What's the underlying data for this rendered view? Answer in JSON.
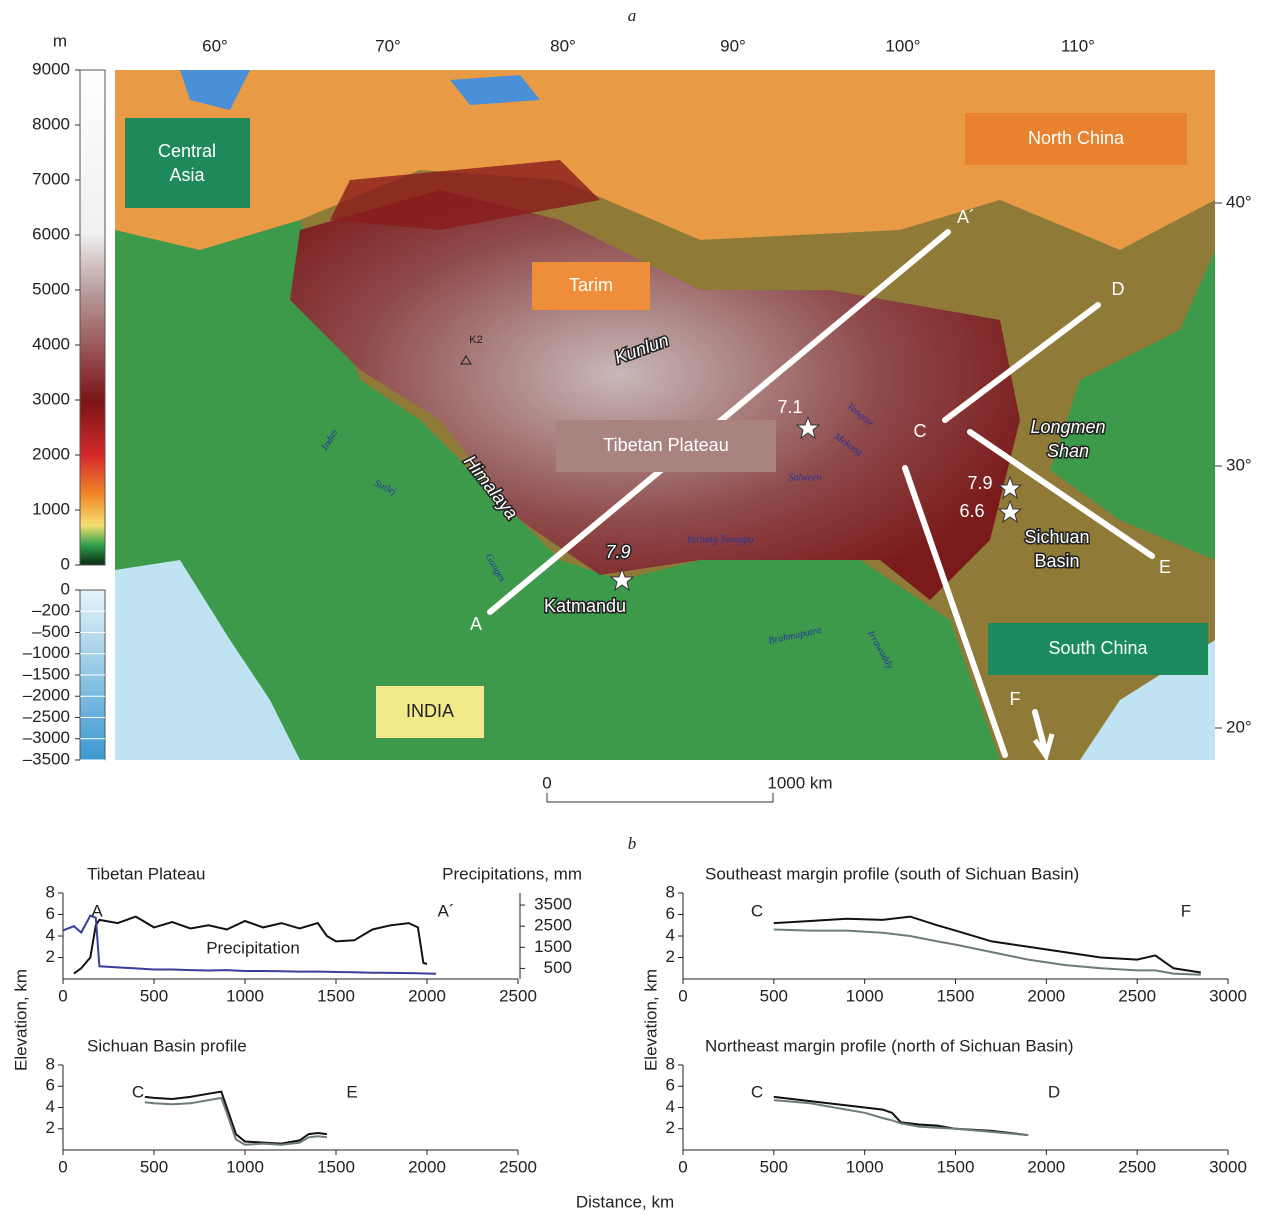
{
  "panel_a": {
    "label": "a",
    "colorbar": {
      "unit": "m",
      "land_ticks": [
        9000,
        8000,
        7000,
        6000,
        5000,
        4000,
        3000,
        2000,
        1000,
        0
      ],
      "sea_ticks": [
        0,
        {
          "value": -200,
          "label": "–200"
        },
        {
          "value": -500,
          "label": "–500"
        },
        {
          "value": -1000,
          "label": "–1000"
        },
        {
          "value": -1500,
          "label": "–1500"
        },
        {
          "value": -2000,
          "label": "–2000"
        },
        {
          "value": -2500,
          "label": "–2500"
        },
        {
          "value": -3000,
          "label": "–3000"
        },
        {
          "value": -3500,
          "label": "–3500"
        }
      ]
    },
    "longitudes": [
      "60°",
      "70°",
      "80°",
      "90°",
      "100°",
      "110°"
    ],
    "latitudes": [
      "40°",
      "30°",
      "20°"
    ],
    "regions": [
      "Central Asia",
      "North China",
      "Tarim",
      "Tibetan Plateau",
      "South China",
      "INDIA"
    ],
    "ranges": [
      "Kunlun",
      "Himalaya",
      "Longmen Shan",
      "Sichuan Basin",
      "Katmandu",
      "K2"
    ],
    "rivers": [
      "Indus",
      "Sutlej",
      "Ganges",
      "Yarlung Tsangpo",
      "Brahmaputra",
      "Irrawaddy",
      "Salween",
      "Mekong",
      "Yangtze"
    ],
    "profile_ends": [
      "A",
      "A´",
      "C",
      "D",
      "E",
      "F"
    ],
    "earthquakes": [
      "7.9",
      "7.1",
      "7.9",
      "6.6"
    ],
    "scale_bar": [
      "0",
      "1000 km"
    ]
  },
  "panel_b": {
    "label": "b",
    "y_label_left": "Elevation, km",
    "y_label_right": "Elevation, km",
    "x_label": "Distance, km"
  },
  "chart_data": [
    {
      "type": "line",
      "title": "Tibetan Plateau",
      "y2_label": "Precipitations, mm",
      "x": [
        0,
        60,
        100,
        150,
        180,
        200,
        300,
        400,
        500,
        600,
        700,
        800,
        900,
        1000,
        1100,
        1200,
        1300,
        1400,
        1450,
        1500,
        1600,
        1700,
        1800,
        1900,
        1950,
        1980,
        2000,
        2050
      ],
      "series": [
        {
          "color": "#111111",
          "values": [
            null,
            0.5,
            1,
            2,
            5,
            5.5,
            5.2,
            5.8,
            4.8,
            5.3,
            4.7,
            5,
            4.6,
            5.4,
            4.8,
            5.2,
            4.7,
            5.2,
            4,
            3.5,
            3.6,
            4.6,
            5,
            5.2,
            4.8,
            1.5,
            1.4,
            null
          ]
        },
        {
          "color": "#3a3f9a",
          "axis": "y2",
          "values": [
            2300,
            2500,
            2200,
            3000,
            2900,
            600,
            550,
            500,
            450,
            450,
            420,
            400,
            420,
            380,
            380,
            370,
            350,
            350,
            340,
            330,
            320,
            300,
            290,
            280,
            270,
            260,
            260,
            250
          ]
        }
      ],
      "annotations": [
        "A",
        "A´",
        "Precipitation"
      ],
      "xlim": [
        0,
        2500
      ],
      "xticks": [
        0,
        500,
        1000,
        1500,
        2000,
        2500
      ],
      "ylim": [
        0,
        8
      ],
      "yticks": [
        2,
        4,
        6,
        8
      ],
      "y2lim": [
        0,
        4070
      ],
      "y2ticks": [
        500,
        1500,
        2500,
        3500
      ]
    },
    {
      "type": "line",
      "title": "Southeast margin profile (south of Sichuan Basin)",
      "x": [
        500,
        700,
        900,
        1100,
        1250,
        1400,
        1500,
        1700,
        1900,
        2100,
        2300,
        2500,
        2600,
        2700,
        2850
      ],
      "series": [
        {
          "color": "#111111",
          "values": [
            5.2,
            5.4,
            5.6,
            5.5,
            5.8,
            5,
            4.5,
            3.5,
            3,
            2.5,
            2,
            1.8,
            2.2,
            1,
            0.6
          ]
        },
        {
          "color": "#6e7b7b",
          "values": [
            4.6,
            4.5,
            4.5,
            4.3,
            4,
            3.5,
            3.2,
            2.5,
            1.8,
            1.3,
            1,
            0.8,
            0.8,
            0.5,
            0.4
          ]
        }
      ],
      "annotations": [
        "C",
        "F"
      ],
      "xlim": [
        0,
        3000
      ],
      "xticks": [
        0,
        500,
        1000,
        1500,
        2000,
        2500,
        3000
      ],
      "ylim": [
        0,
        8
      ],
      "yticks": [
        2,
        4,
        6,
        8
      ]
    },
    {
      "type": "line",
      "title": "Sichuan Basin profile",
      "x": [
        450,
        500,
        600,
        700,
        800,
        870,
        900,
        950,
        1000,
        1100,
        1200,
        1300,
        1350,
        1400,
        1450
      ],
      "series": [
        {
          "color": "#111111",
          "values": [
            5,
            4.9,
            4.8,
            5,
            5.3,
            5.5,
            4,
            1.5,
            0.8,
            0.7,
            0.6,
            0.9,
            1.5,
            1.6,
            1.5
          ]
        },
        {
          "color": "#6e7b7b",
          "values": [
            4.5,
            4.4,
            4.3,
            4.4,
            4.7,
            4.9,
            3.5,
            1,
            0.5,
            0.6,
            0.5,
            0.7,
            1.2,
            1.3,
            1.2
          ]
        }
      ],
      "annotations": [
        "C",
        "E"
      ],
      "xlim": [
        0,
        2500
      ],
      "xticks": [
        0,
        500,
        1000,
        1500,
        2000,
        2500
      ],
      "ylim": [
        0,
        8
      ],
      "yticks": [
        2,
        4,
        6,
        8
      ]
    },
    {
      "type": "line",
      "title": "Northeast margin profile (north of Sichuan Basin)",
      "x": [
        500,
        700,
        900,
        1000,
        1100,
        1150,
        1200,
        1300,
        1400,
        1500,
        1700,
        1900
      ],
      "series": [
        {
          "color": "#111111",
          "values": [
            5,
            4.6,
            4.2,
            4,
            3.8,
            3.5,
            2.6,
            2.4,
            2.3,
            2,
            1.8,
            1.4
          ]
        },
        {
          "color": "#6e7b7b",
          "values": [
            4.7,
            4.4,
            3.8,
            3.5,
            3,
            2.8,
            2.5,
            2.2,
            2.1,
            2,
            1.7,
            1.4
          ]
        }
      ],
      "annotations": [
        "C",
        "D"
      ],
      "xlim": [
        0,
        3000
      ],
      "xticks": [
        0,
        500,
        1000,
        1500,
        2000,
        2500,
        3000
      ],
      "ylim": [
        0,
        8
      ],
      "yticks": [
        2,
        4,
        6,
        8
      ]
    }
  ]
}
